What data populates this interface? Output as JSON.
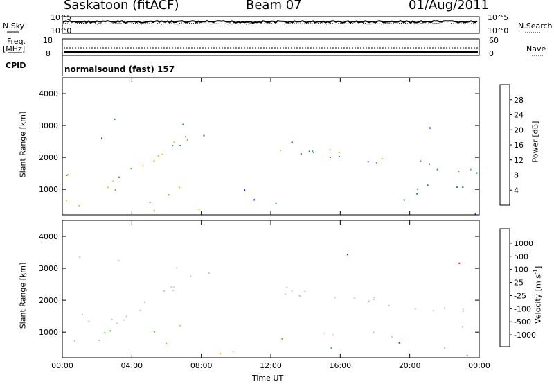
{
  "header": {
    "radar": "Saskatoon (fitACF)",
    "beam": "Beam 07",
    "date": "01/Aug/2011"
  },
  "top_panels": {
    "nsky_label": "N.Sky",
    "nsearch_label": "N.Search",
    "noise_ticks_left": [
      "10^5",
      "10^0"
    ],
    "noise_ticks_right": [
      "10^5",
      "10^0"
    ],
    "freq_label": "Freq.",
    "freq_unit": "[MHz]",
    "freq_ticks": [
      "18",
      "8"
    ],
    "nave_ticks": [
      "60",
      "0"
    ],
    "nave_label": "Nave",
    "cpid_label": "CPID",
    "cpid_text": "normalsound (fast) 157"
  },
  "chart_data": [
    {
      "type": "heatmap",
      "panel": "power",
      "ylabel": "Slant Range [km]",
      "y_ticks": [
        "1000",
        "2000",
        "3000",
        "4000"
      ],
      "y_tick_values": [
        1000,
        2000,
        3000,
        4000
      ],
      "ylim": [
        200,
        4500
      ],
      "xlim_hours": [
        0,
        24
      ],
      "colorbar_label": "Power [dB]",
      "colorbar_ticks": [
        "4",
        "8",
        "12",
        "16",
        "20",
        "24",
        "28"
      ],
      "colorbar_values": [
        4,
        8,
        12,
        16,
        20,
        24,
        28
      ],
      "colors": [
        "#1020e8",
        "#2a50b8",
        "#2f8c7a",
        "#4cb04c",
        "#a8d030",
        "#f0b020",
        "#f06018",
        "#e81010"
      ]
    },
    {
      "type": "heatmap",
      "panel": "velocity",
      "ylabel": "Slant Range [km]",
      "y_ticks": [
        "1000",
        "2000",
        "3000",
        "4000"
      ],
      "y_tick_values": [
        1000,
        2000,
        3000,
        4000
      ],
      "ylim": [
        200,
        4500
      ],
      "xlim_hours": [
        0,
        24
      ],
      "colorbar_label": "Velocity [m s",
      "colorbar_label_sup": "-1",
      "colorbar_label_end": "]",
      "colorbar_ticks": [
        "1000",
        "500",
        "100",
        "25",
        "-25",
        "-100",
        "-500",
        "-1000"
      ],
      "colors": [
        "#1e3ea8",
        "#2e6e9a",
        "#3a9a5a",
        "#6acc3a",
        "#c0c0c0",
        "#c8c8c8",
        "#f0c030",
        "#f08020",
        "#e84010",
        "#e01010"
      ]
    }
  ],
  "x_axis": {
    "label": "Time UT",
    "ticks": [
      "00:00",
      "04:00",
      "08:00",
      "12:00",
      "16:00",
      "20:00",
      "00:00"
    ],
    "tick_hours": [
      0,
      4,
      8,
      12,
      16,
      20,
      24
    ]
  }
}
